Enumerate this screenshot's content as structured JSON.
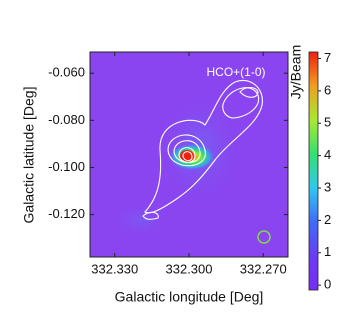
{
  "chart_data": {
    "type": "heatmap",
    "annotation": "HCO+(1-0)",
    "xlabel": "Galactic longitude [Deg]",
    "ylabel": "Galactic latitude [Deg]",
    "colorbar_label": "Jy/Beam",
    "xlim": [
      332.34,
      332.26
    ],
    "xticks": [
      {
        "value": 332.33,
        "label": "332.330"
      },
      {
        "value": 332.3,
        "label": "332.300"
      },
      {
        "value": 332.27,
        "label": "332.270"
      }
    ],
    "ylim": [
      -0.138,
      -0.051
    ],
    "yticks": [
      {
        "value": -0.06,
        "label": "-0.060"
      },
      {
        "value": -0.08,
        "label": "-0.080"
      },
      {
        "value": -0.1,
        "label": "-0.100"
      },
      {
        "value": -0.12,
        "label": "-0.120"
      }
    ],
    "clim": [
      -0.15,
      7.2
    ],
    "cticks": [
      0,
      1,
      2,
      3,
      4,
      5,
      6,
      7
    ],
    "colormap": [
      "#7a2cf5",
      "#6a3cf6",
      "#3f6cf8",
      "#2fc8f0",
      "#35e070",
      "#a8e830",
      "#f0a020",
      "#f02010"
    ]
  }
}
